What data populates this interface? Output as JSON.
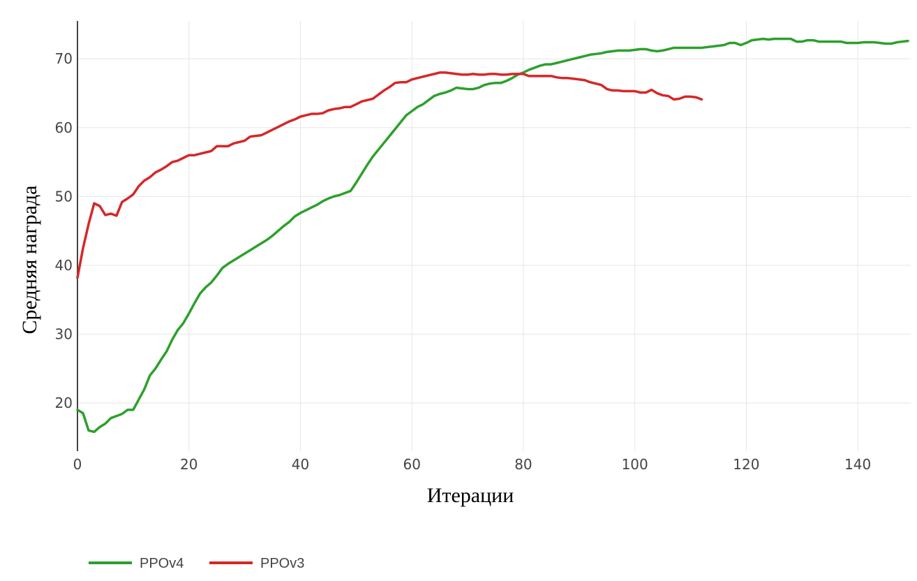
{
  "chart_data": {
    "type": "line",
    "title": "",
    "xlabel": "Итерации",
    "ylabel": "Средняя награда",
    "xlim": [
      0,
      149.5
    ],
    "ylim": [
      13,
      75.5
    ],
    "x_ticks": [
      0,
      20,
      40,
      60,
      80,
      100,
      120,
      140
    ],
    "y_ticks": [
      20,
      30,
      40,
      50,
      60,
      70
    ],
    "grid": true,
    "legend_position": "bottom-left",
    "series": [
      {
        "name": "PPOv4",
        "color": "#2ca02c",
        "x": [
          0,
          1,
          2,
          3,
          4,
          5,
          6,
          7,
          8,
          9,
          10,
          11,
          12,
          13,
          14,
          15,
          16,
          17,
          18,
          19,
          20,
          21,
          22,
          23,
          24,
          25,
          26,
          27,
          28,
          29,
          30,
          31,
          32,
          33,
          34,
          35,
          36,
          37,
          38,
          39,
          40,
          41,
          42,
          43,
          44,
          45,
          46,
          47,
          48,
          49,
          50,
          51,
          52,
          53,
          54,
          55,
          56,
          57,
          58,
          59,
          60,
          61,
          62,
          63,
          64,
          65,
          66,
          67,
          68,
          69,
          70,
          71,
          72,
          73,
          74,
          75,
          76,
          77,
          78,
          79,
          80,
          81,
          82,
          83,
          84,
          85,
          86,
          87,
          88,
          89,
          90,
          91,
          92,
          93,
          94,
          95,
          96,
          97,
          98,
          99,
          100,
          101,
          102,
          103,
          104,
          105,
          106,
          107,
          108,
          109,
          110,
          111,
          112,
          113,
          114,
          115,
          116,
          117,
          118,
          119,
          120,
          121,
          122,
          123,
          124,
          125,
          126,
          127,
          128,
          129,
          130,
          131,
          132,
          133,
          134,
          135,
          136,
          137,
          138,
          139,
          140,
          141,
          142,
          143,
          144,
          145,
          146,
          147,
          148,
          149
        ],
        "y": [
          19.0,
          18.5,
          16.0,
          15.8,
          16.5,
          17.0,
          17.8,
          18.1,
          18.4,
          19.0,
          19.0,
          20.5,
          22.0,
          24.0,
          25.0,
          26.3,
          27.5,
          29.2,
          30.6,
          31.6,
          33.0,
          34.5,
          35.9,
          36.8,
          37.5,
          38.5,
          39.6,
          40.2,
          40.7,
          41.2,
          41.7,
          42.2,
          42.7,
          43.2,
          43.7,
          44.3,
          45.0,
          45.7,
          46.3,
          47.1,
          47.6,
          48.0,
          48.4,
          48.8,
          49.3,
          49.7,
          50.0,
          50.2,
          50.5,
          50.8,
          52.0,
          53.3,
          54.6,
          55.8,
          56.8,
          57.8,
          58.8,
          59.8,
          60.8,
          61.8,
          62.4,
          63.0,
          63.4,
          64.0,
          64.6,
          64.9,
          65.1,
          65.4,
          65.8,
          65.7,
          65.6,
          65.6,
          65.8,
          66.2,
          66.4,
          66.5,
          66.5,
          66.8,
          67.2,
          67.7,
          68.0,
          68.4,
          68.7,
          69.0,
          69.2,
          69.2,
          69.4,
          69.6,
          69.8,
          70.0,
          70.2,
          70.4,
          70.6,
          70.7,
          70.8,
          71.0,
          71.1,
          71.2,
          71.2,
          71.2,
          71.3,
          71.4,
          71.4,
          71.2,
          71.1,
          71.2,
          71.4,
          71.6,
          71.6,
          71.6,
          71.6,
          71.6,
          71.6,
          71.7,
          71.8,
          71.9,
          72.0,
          72.3,
          72.3,
          72.0,
          72.3,
          72.7,
          72.8,
          72.9,
          72.8,
          72.9,
          72.9,
          72.9,
          72.9,
          72.5,
          72.5,
          72.7,
          72.7,
          72.5,
          72.5,
          72.5,
          72.5,
          72.5,
          72.3,
          72.3,
          72.3,
          72.4,
          72.4,
          72.4,
          72.3,
          72.2,
          72.2,
          72.4,
          72.5,
          72.6
        ]
      },
      {
        "name": "PPOv3",
        "color": "#d62728",
        "x": [
          0,
          1,
          2,
          3,
          4,
          5,
          6,
          7,
          8,
          9,
          10,
          11,
          12,
          13,
          14,
          15,
          16,
          17,
          18,
          19,
          20,
          21,
          22,
          23,
          24,
          25,
          26,
          27,
          28,
          29,
          30,
          31,
          32,
          33,
          34,
          35,
          36,
          37,
          38,
          39,
          40,
          41,
          42,
          43,
          44,
          45,
          46,
          47,
          48,
          49,
          50,
          51,
          52,
          53,
          54,
          55,
          56,
          57,
          58,
          59,
          60,
          61,
          62,
          63,
          64,
          65,
          66,
          67,
          68,
          69,
          70,
          71,
          72,
          73,
          74,
          75,
          76,
          77,
          78,
          79,
          80,
          81,
          82,
          83,
          84,
          85,
          86,
          87,
          88,
          89,
          90,
          91,
          92,
          93,
          94,
          95,
          96,
          97,
          98,
          99,
          100,
          101,
          102,
          103,
          104,
          105,
          106,
          107,
          108,
          109,
          110,
          111,
          112
        ],
        "y": [
          38.2,
          42.5,
          46.0,
          49.0,
          48.6,
          47.3,
          47.5,
          47.2,
          49.2,
          49.7,
          50.3,
          51.5,
          52.3,
          52.8,
          53.5,
          53.9,
          54.4,
          55.0,
          55.2,
          55.6,
          56.0,
          56.0,
          56.2,
          56.4,
          56.6,
          57.3,
          57.3,
          57.3,
          57.7,
          57.9,
          58.1,
          58.7,
          58.8,
          58.9,
          59.3,
          59.7,
          60.1,
          60.5,
          60.9,
          61.2,
          61.6,
          61.8,
          62.0,
          62.0,
          62.1,
          62.5,
          62.7,
          62.8,
          63.0,
          63.0,
          63.4,
          63.8,
          64.0,
          64.2,
          64.8,
          65.4,
          65.9,
          66.5,
          66.6,
          66.6,
          67.0,
          67.2,
          67.4,
          67.6,
          67.8,
          68.0,
          68.0,
          67.9,
          67.8,
          67.7,
          67.7,
          67.8,
          67.7,
          67.7,
          67.8,
          67.8,
          67.7,
          67.7,
          67.8,
          67.8,
          67.8,
          67.5,
          67.5,
          67.5,
          67.5,
          67.5,
          67.3,
          67.2,
          67.2,
          67.1,
          67.0,
          66.9,
          66.6,
          66.4,
          66.2,
          65.6,
          65.4,
          65.4,
          65.3,
          65.3,
          65.3,
          65.1,
          65.1,
          65.5,
          65.0,
          64.7,
          64.6,
          64.1,
          64.2,
          64.5,
          64.5,
          64.4,
          64.1
        ]
      }
    ]
  }
}
